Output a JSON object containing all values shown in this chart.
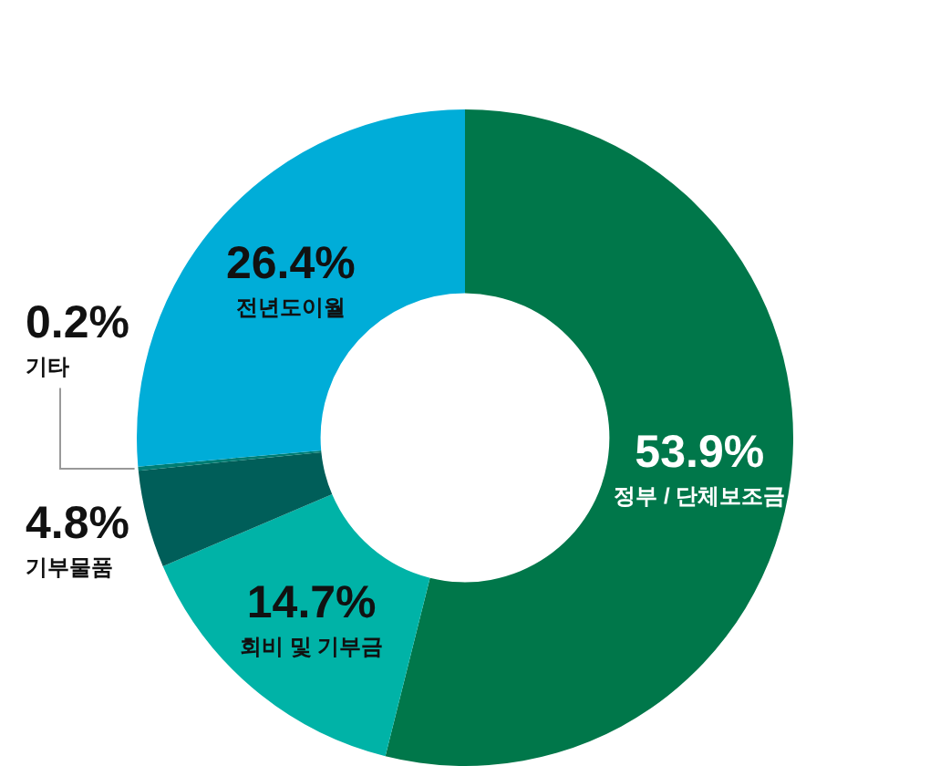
{
  "chart_data": {
    "type": "donut",
    "categories": [
      "정부 / 단체보조금",
      "회비 및 기부금",
      "기부물품",
      "기타",
      "전년도이월"
    ],
    "values": [
      53.9,
      14.7,
      4.8,
      0.2,
      26.4
    ],
    "colors": [
      "#00774a",
      "#00b3a7",
      "#005e59",
      "#007d73",
      "#00add8"
    ],
    "value_labels": [
      "53.9%",
      "14.7%",
      "4.8%",
      "0.2%",
      "26.4%"
    ],
    "legend": false
  }
}
